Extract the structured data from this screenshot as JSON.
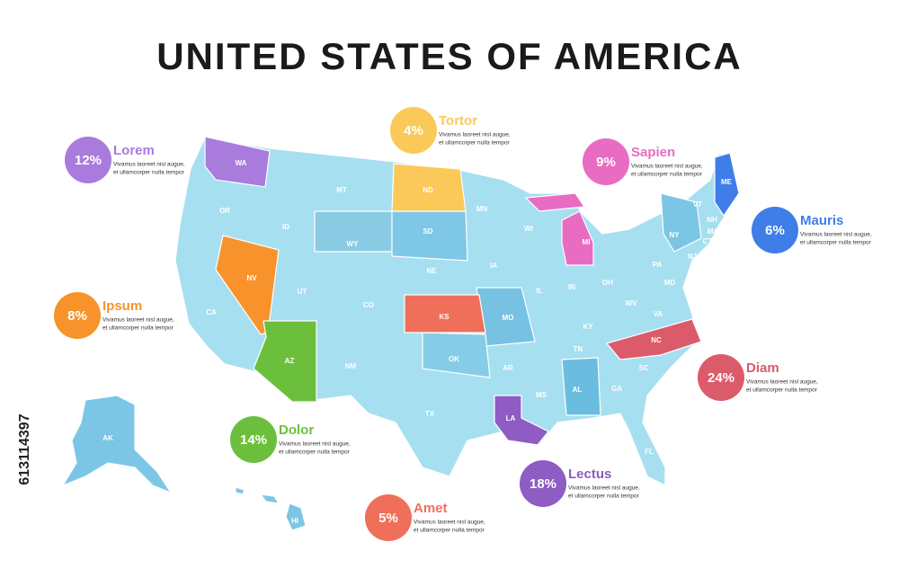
{
  "title": "UNITED STATES OF AMERICA",
  "side_id": "613114397",
  "callouts": [
    {
      "percent": "12%",
      "name": "Lorem",
      "color": "#a97bdc",
      "text_lines": [
        "Vivamus laoreet nisl augue,",
        "et ullamcorper nulla tempor"
      ]
    },
    {
      "percent": "4%",
      "name": "Tortor",
      "color": "#fbc95a",
      "text_lines": [
        "Vivamus laoreet nisl augue,",
        "et ullamcorper nulla tempor"
      ]
    },
    {
      "percent": "9%",
      "name": "Sapien",
      "color": "#e96cc3",
      "text_lines": [
        "Vivamus laoreet nisl augue,",
        "et ullamcorper nulla tempor"
      ]
    },
    {
      "percent": "6%",
      "name": "Mauris",
      "color": "#3f7de8",
      "text_lines": [
        "Vivamus laoreet nisl augue,",
        "et ullamcorper nulla tempor"
      ]
    },
    {
      "percent": "8%",
      "name": "Ipsum",
      "color": "#f7932a",
      "text_lines": [
        "Vivamus laoreet nisl augue,",
        "et ullamcorper nulla tempor"
      ]
    },
    {
      "percent": "24%",
      "name": "Diam",
      "color": "#dc5b6b",
      "text_lines": [
        "Vivamus laoreet nisl augue,",
        "et ullamcorper nulla tempor"
      ]
    },
    {
      "percent": "14%",
      "name": "Dolor",
      "color": "#6cbf3c",
      "text_lines": [
        "Vivamus laoreet nisl augue,",
        "et ullamcorper nulla tempor"
      ]
    },
    {
      "percent": "18%",
      "name": "Lectus",
      "color": "#8e5cc2",
      "text_lines": [
        "Vivamus laoreet nisl augue,",
        "et ullamcorper nulla tempor"
      ]
    },
    {
      "percent": "5%",
      "name": "Amet",
      "color": "#ef6f5a",
      "text_lines": [
        "Vivamus laoreet nisl augue,",
        "et ullamcorper nulla tempor"
      ]
    }
  ],
  "states": [
    "WA",
    "OR",
    "CA",
    "NV",
    "ID",
    "MT",
    "WY",
    "UT",
    "AZ",
    "CO",
    "NM",
    "ND",
    "SD",
    "NE",
    "KS",
    "OK",
    "TX",
    "MN",
    "IA",
    "MO",
    "AR",
    "LA",
    "WI",
    "IL",
    "MI",
    "IN",
    "OH",
    "KY",
    "TN",
    "MS",
    "AL",
    "GA",
    "FL",
    "SC",
    "NC",
    "VA",
    "WV",
    "PA",
    "NY",
    "VT",
    "NH",
    "ME",
    "MA",
    "CT",
    "NJ",
    "MD",
    "AK",
    "HI"
  ]
}
